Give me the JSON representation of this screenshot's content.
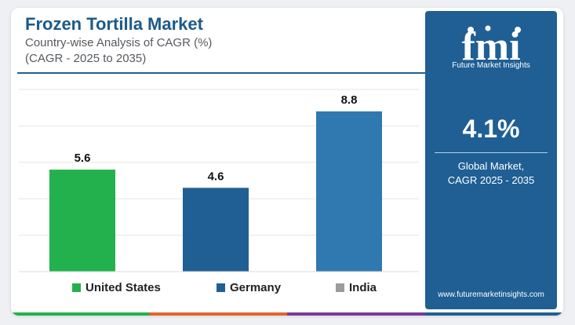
{
  "header": {
    "title": "Frozen Tortilla Market",
    "subtitle": "Country-wise Analysis of CAGR (%)",
    "subtitle2": "(CAGR - 2025 to 2035)"
  },
  "chart_data": {
    "type": "bar",
    "categories": [
      "United States",
      "Germany",
      "India"
    ],
    "values": [
      5.6,
      4.6,
      8.8
    ],
    "value_labels": [
      "5.6",
      "4.6",
      "8.8"
    ],
    "colors": [
      "#22b14c",
      "#1f5f93",
      "#2f78b0"
    ],
    "ylim": [
      0,
      10
    ],
    "grid": true,
    "legend": {
      "position": "bottom",
      "labels": [
        "United States",
        "Germany",
        "India"
      ],
      "colors": [
        "#22b14c",
        "#1f5f93",
        "#9b9b9b"
      ]
    }
  },
  "panel": {
    "logo_text": "fmi",
    "logo_subtitle": "Future Market Insights",
    "cagr_value": "4.1%",
    "cagr_label_line1": "Global Market,",
    "cagr_label_line2": "CAGR 2025 - 2035",
    "website": "www.futuremarketinsights.com"
  },
  "theme": {
    "title_color": "#1c5a8a",
    "panel_color": "#1f5f93",
    "bottom_bar_colors": [
      "#22b14c",
      "#e2662a",
      "#7a3a9a",
      "#1f5f93"
    ]
  }
}
